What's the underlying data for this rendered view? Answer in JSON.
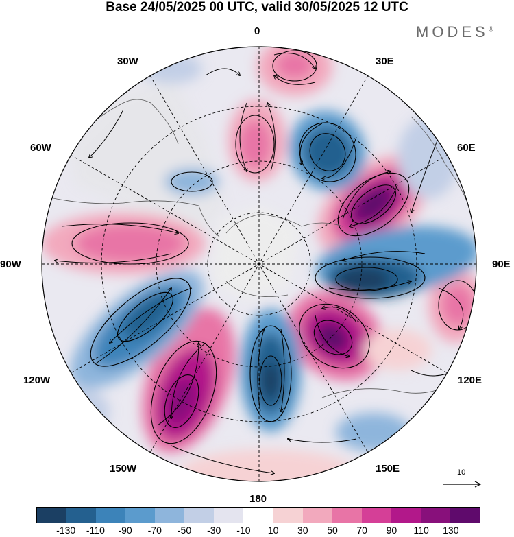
{
  "title": "Base 24/05/2025 00 UTC, valid 30/05/2025 12 UTC",
  "brand": "MODES",
  "brand_mark": "®",
  "longitude_labels": {
    "lon_0": "0",
    "lon_30e": "30E",
    "lon_60e": "60E",
    "lon_90e": "90E",
    "lon_120e": "120E",
    "lon_150e": "150E",
    "lon_180": "180",
    "lon_150w": "150W",
    "lon_120w": "120W",
    "lon_90w": "90W",
    "lon_60w": "60W",
    "lon_30w": "30W"
  },
  "reference_vector": "10",
  "colorbar": {
    "colors": [
      "#1b3f63",
      "#24608f",
      "#3c83b9",
      "#5b9bcd",
      "#8eb5dc",
      "#c2cfe6",
      "#e4e4ef",
      "#ffffff",
      "#f6d2d4",
      "#f2a9bd",
      "#e874a6",
      "#d53f97",
      "#b2188a",
      "#88107b",
      "#5f0a6c"
    ],
    "ticks": [
      "-130",
      "-110",
      "-90",
      "-70",
      "-50",
      "-30",
      "-10",
      "10",
      "30",
      "50",
      "70",
      "90",
      "110",
      "130"
    ]
  }
}
